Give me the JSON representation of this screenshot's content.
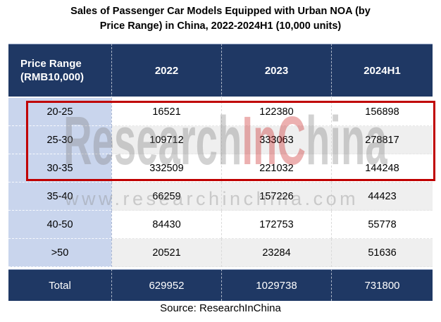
{
  "title": {
    "line1": "Sales of Passenger Car Models Equipped with Urban NOA (by",
    "line2": "Price Range) in China, 2022-2024H1 (10,000 units)"
  },
  "table": {
    "columns": [
      "Price Range (RMB10,000)",
      "2022",
      "2023",
      "2024H1"
    ],
    "rows": [
      {
        "label": "20-25",
        "values": [
          "16521",
          "122380",
          "156898"
        ],
        "highlighted": true
      },
      {
        "label": "25-30",
        "values": [
          "109712",
          "333063",
          "278817"
        ],
        "highlighted": true
      },
      {
        "label": "30-35",
        "values": [
          "332509",
          "221032",
          "144248"
        ],
        "highlighted": true
      },
      {
        "label": "35-40",
        "values": [
          "66259",
          "157226",
          "44423"
        ],
        "highlighted": false
      },
      {
        "label": "40-50",
        "values": [
          "84430",
          "172753",
          "55778"
        ],
        "highlighted": false
      },
      {
        "label": ">50",
        "values": [
          "20521",
          "23284",
          "51636"
        ],
        "highlighted": false
      }
    ],
    "total": {
      "label": "Total",
      "values": [
        "629952",
        "1029738",
        "731800"
      ]
    }
  },
  "watermark": {
    "brand_prefix": "Research",
    "brand_highlight": "InC",
    "brand_suffix": "hina",
    "url": "www.researchinchina.com"
  },
  "source": "Source: ResearchInChina",
  "colors": {
    "header_bg": "#1F3864",
    "label_column_bg": "#C9D5ED",
    "alt_row_bg": "#EFEFEF",
    "highlight_border": "#C00000"
  },
  "chart_data": {
    "type": "table",
    "title": "Sales of Passenger Car Models Equipped with Urban NOA (by Price Range) in China, 2022-2024H1 (10,000 units)",
    "category_label": "Price Range (RMB10,000)",
    "categories": [
      "20-25",
      "25-30",
      "30-35",
      "35-40",
      "40-50",
      ">50",
      "Total"
    ],
    "series": [
      {
        "name": "2022",
        "values": [
          16521,
          109712,
          332509,
          66259,
          84430,
          20521,
          629952
        ]
      },
      {
        "name": "2023",
        "values": [
          122380,
          333063,
          221032,
          157226,
          172753,
          23284,
          1029738
        ]
      },
      {
        "name": "2024H1",
        "values": [
          156898,
          278817,
          144248,
          44423,
          55778,
          51636,
          731800
        ]
      }
    ],
    "highlighted_rows": [
      "20-25",
      "25-30",
      "30-35"
    ],
    "source": "Source: ResearchInChina"
  }
}
